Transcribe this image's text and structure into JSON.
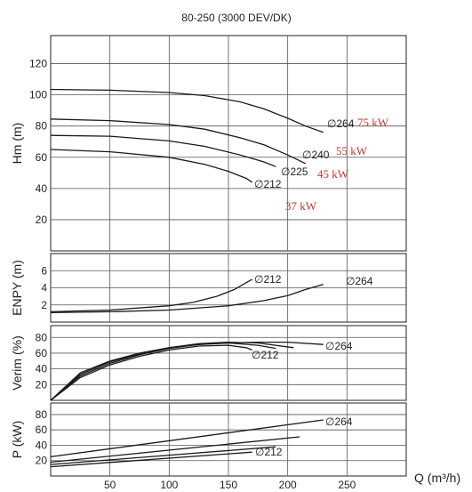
{
  "chart_data": {
    "type": "line",
    "title": "80-250 (3000 DEV/DK)",
    "xlabel": "Q (m³/h)",
    "xlim": [
      0,
      300
    ],
    "xticks": [
      50,
      100,
      150,
      200,
      250
    ],
    "diameter_symbol": "∅",
    "power_labels": [
      "75 kW",
      "55 kW",
      "45 kW",
      "37 kW"
    ],
    "panels": [
      {
        "id": "head",
        "ylabel": "Hm (m)",
        "ylim": [
          0,
          138
        ],
        "yticks": [
          20,
          40,
          60,
          80,
          100,
          120
        ],
        "series": [
          {
            "name": "264",
            "x": [
              0,
              50,
              100,
              130,
              160,
              180,
              200,
              215,
              230
            ],
            "y": [
              103.5,
              103,
              101.5,
              99.5,
              95.5,
              91,
              85,
              80,
              76
            ]
          },
          {
            "name": "240",
            "x": [
              0,
              50,
              100,
              130,
              160,
              180,
              200,
              215
            ],
            "y": [
              84.5,
              83.5,
              81,
              78,
              72.5,
              68,
              61.5,
              56
            ]
          },
          {
            "name": "225",
            "x": [
              0,
              50,
              100,
              130,
              160,
              180,
              190
            ],
            "y": [
              74,
              73.5,
              70.5,
              67,
              61.5,
              57,
              54
            ]
          },
          {
            "name": "212",
            "x": [
              0,
              50,
              100,
              130,
              150,
              165,
              170
            ],
            "y": [
              65,
              63.5,
              60,
              55.5,
              51,
              46.5,
              44
            ]
          }
        ]
      },
      {
        "id": "npsh",
        "ylabel": "ENPY (m)",
        "ylim": [
          0,
          8
        ],
        "yticks": [
          2,
          4,
          6
        ],
        "series": [
          {
            "name": "212",
            "x": [
              0,
              50,
              100,
              120,
              140,
              155,
              165,
              170
            ],
            "y": [
              1.2,
              1.4,
              1.9,
              2.3,
              3,
              3.8,
              4.6,
              5
            ]
          },
          {
            "name": "264",
            "x": [
              0,
              50,
              100,
              150,
              180,
              200,
              215,
              230
            ],
            "y": [
              1.1,
              1.2,
              1.4,
              1.9,
              2.5,
              3.1,
              3.8,
              4.4
            ]
          }
        ]
      },
      {
        "id": "efficiency",
        "ylabel": "Verim (%)",
        "ylim": [
          0,
          95
        ],
        "yticks": [
          20,
          40,
          60,
          80
        ],
        "series": [
          {
            "name": "264",
            "x": [
              0,
              25,
              50,
              75,
              100,
              125,
              150,
              175,
              200,
              230
            ],
            "y": [
              0,
              35,
              50,
              60,
              67,
              71,
              73,
              74,
              74,
              71
            ]
          },
          {
            "name": "240",
            "x": [
              0,
              25,
              50,
              75,
              100,
              125,
              150,
              175,
              205
            ],
            "y": [
              0,
              33,
              49,
              59,
              67,
              72,
              74,
              73,
              67
            ]
          },
          {
            "name": "225",
            "x": [
              0,
              25,
              50,
              75,
              100,
              125,
              150,
              175,
              190
            ],
            "y": [
              0,
              31,
              47,
              58,
              66,
              71,
              73,
              70,
              66
            ]
          },
          {
            "name": "212",
            "x": [
              0,
              25,
              50,
              75,
              100,
              125,
              150,
              165,
              170
            ],
            "y": [
              0,
              29,
              45,
              56,
              64,
              69,
              70,
              67,
              64
            ]
          }
        ]
      },
      {
        "id": "power",
        "ylabel": "P (kW)",
        "ylim": [
          0,
          95
        ],
        "yticks": [
          20,
          40,
          60,
          80
        ],
        "series": [
          {
            "name": "264",
            "x": [
              0,
              230
            ],
            "y": [
              25,
              73
            ]
          },
          {
            "name": "240",
            "x": [
              0,
              210
            ],
            "y": [
              18,
              51
            ]
          },
          {
            "name": "225",
            "x": [
              0,
              190
            ],
            "y": [
              15,
              38
            ]
          },
          {
            "name": "212",
            "x": [
              0,
              170
            ],
            "y": [
              12,
              31
            ]
          }
        ]
      }
    ]
  }
}
